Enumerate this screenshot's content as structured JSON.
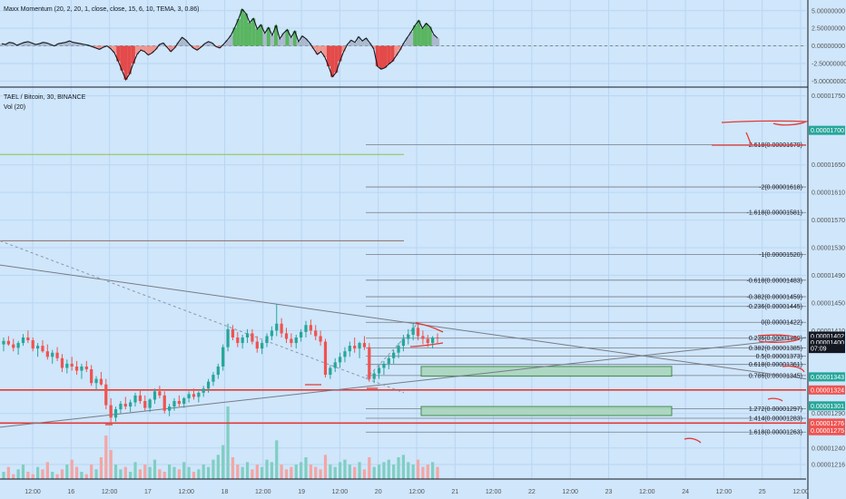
{
  "chart_data": {
    "type": "candlestick",
    "oscillator": {
      "title": "Maxx Momentum (20, 2, 20, 1, close, close, 15, 6, 10, TEMA, 3, 0.86)",
      "ticks": [
        "5.00000000",
        "2.50000000",
        "0.00000000",
        "-2.50000000",
        "-5.00000000"
      ],
      "tick_values": [
        5,
        2.5,
        0,
        -2.5,
        -5
      ],
      "ylim": [
        -5.6,
        6.0
      ],
      "line": [
        0.3,
        0.2,
        0.5,
        0.4,
        0.1,
        0.3,
        0.5,
        0.6,
        0.4,
        0.2,
        0.3,
        0.5,
        0.4,
        0.2,
        0.0,
        0.3,
        0.4,
        0.5,
        0.7,
        0.5,
        0.4,
        0.3,
        0.2,
        0.1,
        -0.1,
        -0.3,
        -0.5,
        -0.2,
        0.0,
        -0.4,
        -1.0,
        -2.2,
        -3.5,
        -4.8,
        -4.0,
        -2.5,
        -1.2,
        -0.6,
        -0.8,
        -1.3,
        -1.0,
        -0.5,
        0.2,
        0.4,
        -0.2,
        -0.8,
        -0.3,
        0.5,
        1.2,
        0.8,
        0.2,
        -0.3,
        -0.6,
        -0.2,
        0.3,
        0.6,
        0.4,
        -0.1,
        -0.3,
        0.2,
        0.8,
        1.5,
        2.6,
        3.8,
        5.2,
        4.6,
        3.3,
        3.9,
        2.4,
        3.0,
        1.8,
        2.6,
        1.5,
        2.9,
        1.0,
        1.8,
        2.3,
        1.2,
        2.1,
        0.6,
        1.4,
        1.0,
        0.4,
        -0.4,
        -1.2,
        -0.8,
        -1.6,
        -2.9,
        -4.4,
        -3.8,
        -2.2,
        -0.8,
        0.2,
        0.8,
        0.5,
        1.3,
        0.7,
        1.1,
        0.4,
        -0.4,
        -2.9,
        -3.3,
        -3.1,
        -2.6,
        -2.2,
        -1.4,
        -0.6,
        0.4,
        1.2,
        2.0,
        2.9,
        3.6,
        2.5,
        3.2,
        2.7,
        1.6,
        1.1
      ],
      "bars": [
        0.3,
        0.2,
        0.5,
        0.4,
        0.1,
        0.3,
        0.5,
        0.6,
        0.4,
        0.2,
        0.3,
        0.5,
        0.4,
        0.2,
        0.0,
        0.3,
        0.4,
        0.5,
        0.7,
        0.5,
        0.4,
        0.3,
        0.2,
        0.1,
        -0.1,
        -0.3,
        -0.5,
        -0.2,
        0.0,
        -0.4,
        -1.0,
        -2.2,
        -3.5,
        -4.8,
        -4.0,
        -2.5,
        -1.2,
        -0.6,
        -0.8,
        -1.3,
        -1.0,
        -0.5,
        0.2,
        0.4,
        -0.2,
        -0.8,
        -0.3,
        0.5,
        1.2,
        0.8,
        0.2,
        -0.3,
        -0.6,
        -0.2,
        0.3,
        0.6,
        0.4,
        -0.1,
        -0.3,
        0.2,
        0.8,
        1.5,
        2.6,
        3.8,
        5.2,
        4.6,
        3.3,
        3.9,
        2.4,
        3.0,
        1.8,
        2.6,
        1.5,
        2.9,
        1.0,
        1.8,
        2.3,
        1.2,
        2.1,
        0.6,
        1.4,
        1.0,
        0.4,
        -0.4,
        -1.2,
        -0.8,
        -1.6,
        -2.9,
        -4.4,
        -3.8,
        -2.2,
        -0.8,
        0.2,
        0.8,
        0.5,
        1.3,
        0.7,
        1.1,
        0.4,
        -0.4,
        -2.9,
        -3.3,
        -3.1,
        -2.6,
        -2.2,
        -1.4,
        -0.6,
        0.4,
        1.2,
        2.0,
        2.9,
        3.6,
        2.5,
        3.2,
        2.7,
        1.6,
        1.1
      ]
    },
    "main": {
      "title": "TAEL / Bitcoin, 30, BINANCE",
      "subtitle": "Vol (20)",
      "ylim": [
        1.195e-05,
        1.76e-05
      ],
      "price_ticks": [
        "0.00001750",
        "0.00001650",
        "0.00001610",
        "0.00001570",
        "0.00001530",
        "0.00001490",
        "0.00001450",
        "0.00001410",
        "0.00001290",
        "0.00001240",
        "0.00001216"
      ],
      "price_tick_values": [
        1.75e-05,
        1.65e-05,
        1.61e-05,
        1.57e-05,
        1.53e-05,
        1.49e-05,
        1.45e-05,
        1.41e-05,
        1.29e-05,
        1.24e-05,
        1.216e-05
      ],
      "price_badges": [
        {
          "label": "0.00001700",
          "value": 1.7e-05,
          "color": "#26a69a"
        },
        {
          "label": "0.00001402",
          "value": 1.402e-05,
          "color": "#131722"
        },
        {
          "label": "0.00001400",
          "value": 1.393e-05,
          "color": "#131722"
        },
        {
          "label": "07:09",
          "value": 1.384e-05,
          "color": "#131722"
        },
        {
          "label": "0.00001343",
          "value": 1.343e-05,
          "color": "#26a69a"
        },
        {
          "label": "0.00001324",
          "value": 1.324e-05,
          "color": "#ef5350"
        },
        {
          "label": "0.00001301",
          "value": 1.301e-05,
          "color": "#26a69a"
        },
        {
          "label": "0.00001276",
          "value": 1.276e-05,
          "color": "#ef5350"
        },
        {
          "label": "0.00001275",
          "value": 1.265e-05,
          "color": "#ef5350"
        }
      ],
      "x_ticks": [
        "12:00",
        "16",
        "12:00",
        "17",
        "12:00",
        "18",
        "12:00",
        "19",
        "12:00",
        "20",
        "12:00",
        "21",
        "12:00",
        "22",
        "12:00",
        "23",
        "12:00",
        "24",
        "12:00",
        "25",
        "12:00"
      ],
      "candles": [
        [
          1390,
          1400,
          1380,
          1395
        ],
        [
          1395,
          1402,
          1388,
          1390
        ],
        [
          1390,
          1398,
          1380,
          1385
        ],
        [
          1385,
          1395,
          1375,
          1392
        ],
        [
          1392,
          1405,
          1388,
          1400
        ],
        [
          1400,
          1410,
          1392,
          1396
        ],
        [
          1396,
          1400,
          1380,
          1384
        ],
        [
          1384,
          1392,
          1372,
          1388
        ],
        [
          1388,
          1396,
          1378,
          1380
        ],
        [
          1380,
          1390,
          1368,
          1372
        ],
        [
          1372,
          1382,
          1362,
          1378
        ],
        [
          1378,
          1386,
          1366,
          1370
        ],
        [
          1370,
          1376,
          1350,
          1356
        ],
        [
          1356,
          1368,
          1348,
          1362
        ],
        [
          1362,
          1372,
          1352,
          1358
        ],
        [
          1358,
          1366,
          1346,
          1352
        ],
        [
          1352,
          1362,
          1340,
          1358
        ],
        [
          1358,
          1366,
          1350,
          1354
        ],
        [
          1354,
          1360,
          1330,
          1334
        ],
        [
          1334,
          1344,
          1324,
          1340
        ],
        [
          1340,
          1350,
          1330,
          1332
        ],
        [
          1332,
          1340,
          1296,
          1302
        ],
        [
          1302,
          1312,
          1276,
          1284
        ],
        [
          1284,
          1300,
          1278,
          1296
        ],
        [
          1296,
          1308,
          1290,
          1304
        ],
        [
          1304,
          1314,
          1296,
          1300
        ],
        [
          1300,
          1310,
          1292,
          1306
        ],
        [
          1306,
          1320,
          1300,
          1316
        ],
        [
          1316,
          1324,
          1304,
          1308
        ],
        [
          1308,
          1316,
          1294,
          1298
        ],
        [
          1298,
          1312,
          1292,
          1310
        ],
        [
          1310,
          1326,
          1304,
          1322
        ],
        [
          1322,
          1330,
          1312,
          1316
        ],
        [
          1316,
          1322,
          1290,
          1294
        ],
        [
          1294,
          1304,
          1286,
          1300
        ],
        [
          1300,
          1312,
          1294,
          1308
        ],
        [
          1308,
          1316,
          1300,
          1304
        ],
        [
          1304,
          1314,
          1298,
          1312
        ],
        [
          1312,
          1322,
          1306,
          1318
        ],
        [
          1318,
          1326,
          1310,
          1314
        ],
        [
          1314,
          1322,
          1306,
          1320
        ],
        [
          1320,
          1330,
          1314,
          1326
        ],
        [
          1326,
          1340,
          1320,
          1336
        ],
        [
          1336,
          1350,
          1330,
          1346
        ],
        [
          1346,
          1362,
          1340,
          1358
        ],
        [
          1358,
          1390,
          1352,
          1386
        ],
        [
          1386,
          1420,
          1380,
          1412
        ],
        [
          1412,
          1418,
          1396,
          1400
        ],
        [
          1400,
          1408,
          1386,
          1392
        ],
        [
          1392,
          1404,
          1384,
          1400
        ],
        [
          1400,
          1412,
          1392,
          1406
        ],
        [
          1406,
          1412,
          1390,
          1394
        ],
        [
          1394,
          1402,
          1378,
          1384
        ],
        [
          1384,
          1396,
          1376,
          1392
        ],
        [
          1392,
          1406,
          1386,
          1402
        ],
        [
          1402,
          1416,
          1396,
          1410
        ],
        [
          1410,
          1448,
          1402,
          1420
        ],
        [
          1420,
          1428,
          1400,
          1406
        ],
        [
          1406,
          1414,
          1392,
          1398
        ],
        [
          1398,
          1406,
          1386,
          1392
        ],
        [
          1392,
          1404,
          1384,
          1400
        ],
        [
          1400,
          1412,
          1394,
          1408
        ],
        [
          1408,
          1424,
          1400,
          1418
        ],
        [
          1418,
          1426,
          1404,
          1410
        ],
        [
          1410,
          1418,
          1396,
          1402
        ],
        [
          1402,
          1410,
          1388,
          1394
        ],
        [
          1394,
          1398,
          1342,
          1346
        ],
        [
          1346,
          1360,
          1340,
          1356
        ],
        [
          1356,
          1370,
          1350,
          1364
        ],
        [
          1364,
          1378,
          1356,
          1372
        ],
        [
          1372,
          1386,
          1364,
          1380
        ],
        [
          1380,
          1394,
          1372,
          1388
        ],
        [
          1388,
          1400,
          1378,
          1384
        ],
        [
          1384,
          1394,
          1370,
          1392
        ],
        [
          1392,
          1402,
          1382,
          1386
        ],
        [
          1386,
          1392,
          1336,
          1340
        ],
        [
          1340,
          1352,
          1334,
          1348
        ],
        [
          1348,
          1360,
          1340,
          1356
        ],
        [
          1356,
          1366,
          1346,
          1362
        ],
        [
          1362,
          1374,
          1354,
          1370
        ],
        [
          1370,
          1382,
          1362,
          1378
        ],
        [
          1378,
          1392,
          1370,
          1388
        ],
        [
          1388,
          1404,
          1380,
          1398
        ],
        [
          1398,
          1412,
          1390,
          1404
        ],
        [
          1404,
          1420,
          1396,
          1414
        ],
        [
          1414,
          1422,
          1396,
          1402
        ],
        [
          1402,
          1410,
          1390,
          1398
        ],
        [
          1398,
          1404,
          1386,
          1392
        ],
        [
          1392,
          1402,
          1384,
          1400
        ],
        [
          1400,
          1406,
          1392,
          1399
        ]
      ],
      "volume": [
        3,
        5,
        2,
        4,
        6,
        3,
        2,
        5,
        4,
        7,
        3,
        2,
        4,
        6,
        8,
        5,
        3,
        2,
        6,
        4,
        9,
        18,
        12,
        6,
        4,
        5,
        3,
        7,
        4,
        6,
        5,
        8,
        4,
        3,
        6,
        5,
        4,
        7,
        5,
        3,
        4,
        6,
        5,
        8,
        10,
        14,
        30,
        9,
        6,
        5,
        7,
        4,
        6,
        5,
        8,
        7,
        16,
        6,
        4,
        5,
        6,
        7,
        9,
        6,
        5,
        4,
        10,
        6,
        5,
        7,
        8,
        6,
        5,
        7,
        4,
        9,
        5,
        6,
        7,
        8,
        6,
        9,
        10,
        7,
        6,
        8,
        5,
        6,
        7,
        5
      ],
      "fib_levels": [
        {
          "label": "-2.618(0.00001679)",
          "value": 1.679e-05
        },
        {
          "label": "-2(0.00001618)",
          "value": 1.618e-05
        },
        {
          "label": "-1.618(0.00001581)",
          "value": 1.581e-05
        },
        {
          "label": "-1(0.00001520)",
          "value": 1.52e-05
        },
        {
          "label": "-0.618(0.00001483)",
          "value": 1.483e-05
        },
        {
          "label": "-0.382(0.00001459)",
          "value": 1.459e-05
        },
        {
          "label": "-0.236(0.00001445)",
          "value": 1.445e-05
        },
        {
          "label": "0(0.00001422)",
          "value": 1.422e-05
        },
        {
          "label": "0.236(0.00001399)",
          "value": 1.399e-05
        },
        {
          "label": "0.382(0.00001385)",
          "value": 1.385e-05
        },
        {
          "label": "0.5(0.00001373)",
          "value": 1.373e-05
        },
        {
          "label": "0.618(0.00001361)",
          "value": 1.361e-05
        },
        {
          "label": "0.786(0.00001345)",
          "value": 1.345e-05
        },
        {
          "label": "1.272(0.00001297)",
          "value": 1.297e-05
        },
        {
          "label": "1.414(0.00001283)",
          "value": 1.283e-05
        },
        {
          "label": "1.618(0.00001263)",
          "value": 1.263e-05
        }
      ],
      "horizontal_lines": [
        {
          "value": 1.665e-05,
          "color": "#8bc34a"
        },
        {
          "value": 1.54e-05,
          "color": "#8d6e63"
        },
        {
          "value": 1.324e-05,
          "color": "#e53935"
        },
        {
          "value": 1.276e-05,
          "color": "#e53935"
        }
      ],
      "zones": [
        {
          "from": 1.358e-05,
          "to": 1.344e-05
        },
        {
          "from": 1.3e-05,
          "to": 1.287e-05
        }
      ]
    },
    "colors": {
      "up": "#26a69a",
      "down": "#ef5350",
      "background": "#cfe6fb",
      "grid": "#b9d6f2"
    }
  }
}
